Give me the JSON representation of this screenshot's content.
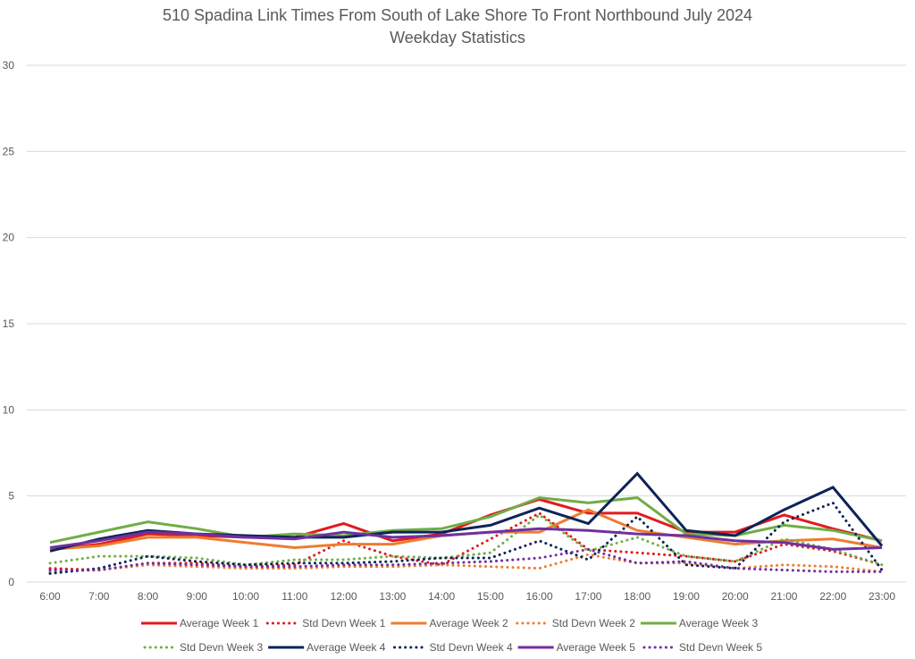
{
  "chart_data": {
    "type": "line",
    "title": "510 Spadina Link Times From South of Lake Shore To Front Northbound July 2024",
    "subtitle": "Weekday Statistics",
    "xlabel": "",
    "ylabel": "",
    "ylim": [
      0,
      30
    ],
    "yticks": [
      0,
      5,
      10,
      15,
      20,
      25,
      30
    ],
    "grid": true,
    "legend_position": "bottom",
    "x": [
      "6:00",
      "7:00",
      "8:00",
      "9:00",
      "10:00",
      "11:00",
      "12:00",
      "13:00",
      "14:00",
      "15:00",
      "16:00",
      "17:00",
      "18:00",
      "19:00",
      "20:00",
      "21:00",
      "22:00",
      "23:00"
    ],
    "series": [
      {
        "name": "Average Week 1",
        "color": "#e31a1c",
        "style": "solid",
        "values": [
          1.9,
          2.2,
          2.8,
          2.7,
          2.6,
          2.6,
          3.4,
          2.4,
          2.8,
          3.9,
          4.8,
          4.0,
          4.0,
          2.9,
          2.9,
          3.9,
          3.1,
          2.4
        ]
      },
      {
        "name": "Std Devn Week 1",
        "color": "#e31a1c",
        "style": "dotted",
        "values": [
          0.8,
          0.7,
          1.1,
          1.1,
          0.9,
          1.0,
          2.4,
          1.5,
          1.0,
          2.5,
          4.0,
          1.9,
          1.7,
          1.5,
          1.2,
          2.2,
          1.8,
          1.0
        ]
      },
      {
        "name": "Average Week 2",
        "color": "#ed7d31",
        "style": "solid",
        "values": [
          1.9,
          2.1,
          2.6,
          2.6,
          2.3,
          2.0,
          2.2,
          2.2,
          2.7,
          2.9,
          2.9,
          4.2,
          3.0,
          2.6,
          2.2,
          2.4,
          2.5,
          2.0
        ]
      },
      {
        "name": "Std Devn Week 2",
        "color": "#ed7d31",
        "style": "dotted",
        "values": [
          0.6,
          0.7,
          1.0,
          0.9,
          0.8,
          0.8,
          0.9,
          0.9,
          1.0,
          0.9,
          0.8,
          1.6,
          1.1,
          1.1,
          0.8,
          1.0,
          0.9,
          0.6
        ]
      },
      {
        "name": "Average Week 3",
        "color": "#70ad47",
        "style": "solid",
        "values": [
          2.3,
          2.9,
          3.5,
          3.1,
          2.6,
          2.8,
          2.7,
          3.0,
          3.1,
          3.8,
          4.9,
          4.6,
          4.9,
          2.8,
          2.7,
          3.3,
          3.0,
          2.4
        ]
      },
      {
        "name": "Std Devn Week 3",
        "color": "#70ad47",
        "style": "dotted",
        "values": [
          1.1,
          1.5,
          1.5,
          1.4,
          1.0,
          1.3,
          1.3,
          1.5,
          1.4,
          1.7,
          3.9,
          1.8,
          2.6,
          1.5,
          1.2,
          2.5,
          1.9,
          1.0
        ]
      },
      {
        "name": "Average Week 4",
        "color": "#0d2458",
        "style": "solid",
        "values": [
          1.8,
          2.5,
          3.0,
          2.8,
          2.7,
          2.6,
          2.6,
          2.9,
          2.9,
          3.3,
          4.3,
          3.4,
          6.3,
          3.0,
          2.7,
          4.2,
          5.5,
          2.1
        ]
      },
      {
        "name": "Std Devn Week 4",
        "color": "#0d2458",
        "style": "dotted",
        "values": [
          0.5,
          0.8,
          1.5,
          1.2,
          1.0,
          1.1,
          1.1,
          1.2,
          1.4,
          1.4,
          2.4,
          1.3,
          3.8,
          1.0,
          0.8,
          3.5,
          4.6,
          0.7
        ]
      },
      {
        "name": "Average Week 5",
        "color": "#7030a0",
        "style": "solid",
        "values": [
          2.0,
          2.4,
          2.9,
          2.8,
          2.6,
          2.5,
          2.9,
          2.6,
          2.7,
          2.9,
          3.1,
          3.0,
          2.8,
          2.7,
          2.4,
          2.3,
          1.9,
          2.0
        ]
      },
      {
        "name": "Std Devn Week 5",
        "color": "#7030a0",
        "style": "dotted",
        "values": [
          0.7,
          0.7,
          1.1,
          1.0,
          0.9,
          0.9,
          1.0,
          1.0,
          1.1,
          1.2,
          1.4,
          1.9,
          1.1,
          1.2,
          0.8,
          0.7,
          0.6,
          0.6
        ]
      }
    ]
  }
}
